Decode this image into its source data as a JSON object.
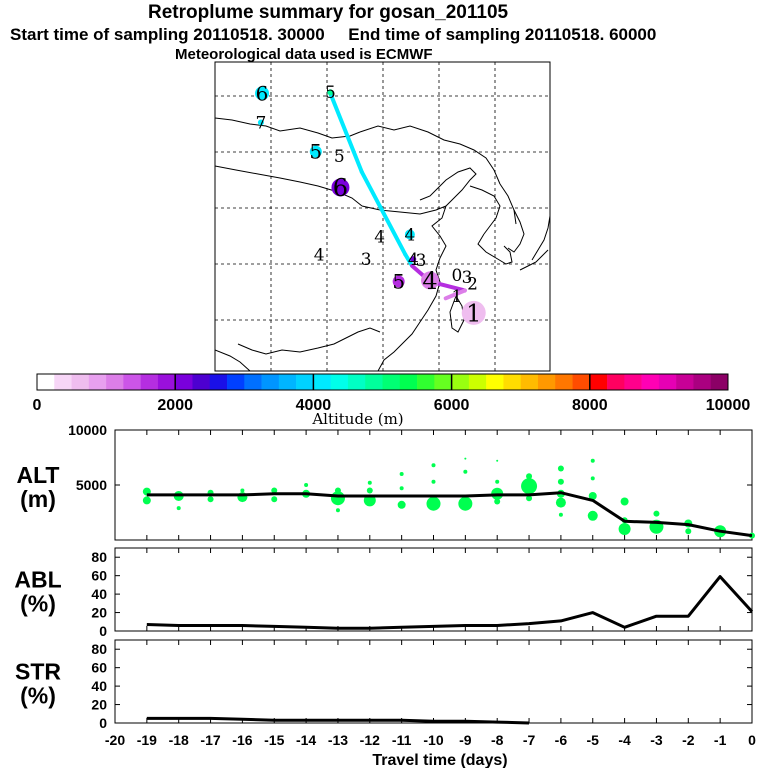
{
  "header": {
    "title": "Retroplume summary for gosan_201105",
    "start_time": "Start time of sampling 20110518. 30000",
    "end_time": "End time of sampling 20110518. 60000",
    "met_data": "Meteorological data used is ECMWF"
  },
  "colorbar": {
    "label": "Altitude (m)",
    "tick_labels": [
      "0",
      "2000",
      "4000",
      "6000",
      "8000",
      "10000"
    ],
    "range": [
      0,
      10000
    ],
    "colors": [
      "#ffffff",
      "#f7d6f7",
      "#efbdef",
      "#e8a0ef",
      "#dc7ee8",
      "#cc55e8",
      "#b52ee0",
      "#9a10dc",
      "#7a00dc",
      "#4d00d0",
      "#1a10e8",
      "#0040ff",
      "#0070ff",
      "#0095ff",
      "#00b5ff",
      "#00d2ff",
      "#00eaff",
      "#00ffea",
      "#00ffc4",
      "#00ff9c",
      "#00ff74",
      "#00ff50",
      "#30ff30",
      "#66ff20",
      "#99ff10",
      "#ccff00",
      "#ffff00",
      "#ffdd00",
      "#ffbb00",
      "#ff9900",
      "#ff7700",
      "#ff4c00",
      "#ff0000",
      "#ff0060",
      "#ff008c",
      "#ff00b4",
      "#e600b4",
      "#c80096",
      "#aa0080",
      "#8c0066"
    ]
  },
  "map": {
    "trajectory": [
      {
        "day": 7,
        "lon": 117.3,
        "lat": 55.2,
        "alt": 4000
      },
      {
        "day": 5,
        "lon": 120.1,
        "lat": 48.2,
        "alt": 4000
      },
      {
        "day": 4,
        "lon": 124.0,
        "lat": 40.8,
        "alt": 4000
      },
      {
        "day": 3,
        "lon": 124.6,
        "lat": 39.8,
        "alt": 1500
      },
      {
        "day": 2,
        "lon": 126.2,
        "lat": 38.4,
        "alt": 1500
      },
      {
        "day": 1,
        "lon": 129.3,
        "lat": 37.6,
        "alt": 1000
      },
      {
        "day": 0,
        "lon": 127.6,
        "lat": 36.9,
        "alt": 500
      }
    ],
    "markers": [
      {
        "label": "6",
        "lon": 111.2,
        "lat": 55.2,
        "alt": 4000,
        "size": 7
      },
      {
        "label": "5",
        "lon": 117.3,
        "lat": 55.3,
        "alt": 4800,
        "size": 3
      },
      {
        "label": "7",
        "lon": 111.1,
        "lat": 52.6,
        "alt": 4000,
        "size": 3
      },
      {
        "label": "5",
        "lon": 116.0,
        "lat": 50.0,
        "alt": 4000,
        "size": 6
      },
      {
        "label": "5",
        "lon": 118.1,
        "lat": 49.6,
        "alt": 4000,
        "size": 0
      },
      {
        "label": "6",
        "lon": 118.2,
        "lat": 46.8,
        "alt": 2000,
        "size": 9
      },
      {
        "label": "4",
        "lon": 121.7,
        "lat": 42.4,
        "alt": 3800,
        "size": 0
      },
      {
        "label": "4",
        "lon": 124.4,
        "lat": 42.6,
        "alt": 4000,
        "size": 5
      },
      {
        "label": "4",
        "lon": 116.3,
        "lat": 40.8,
        "alt": 4000,
        "size": 0
      },
      {
        "label": "3",
        "lon": 120.5,
        "lat": 40.4,
        "alt": 4000,
        "size": 0
      },
      {
        "label": "4",
        "lon": 124.7,
        "lat": 40.4,
        "alt": 2000,
        "size": 3
      },
      {
        "label": "3",
        "lon": 125.4,
        "lat": 40.3,
        "alt": 1800,
        "size": 0
      },
      {
        "label": "5",
        "lon": 123.4,
        "lat": 38.4,
        "alt": 1500,
        "size": 6
      },
      {
        "label": "4",
        "lon": 126.2,
        "lat": 38.5,
        "alt": 1000,
        "size": 9
      },
      {
        "label": "0",
        "lon": 128.6,
        "lat": 39.0,
        "alt": 500,
        "size": 0
      },
      {
        "label": "3",
        "lon": 129.5,
        "lat": 38.8,
        "alt": 1500,
        "size": 0
      },
      {
        "label": "2",
        "lon": 130.0,
        "lat": 38.2,
        "alt": 1500,
        "size": 0
      },
      {
        "label": "1",
        "lon": 128.6,
        "lat": 37.1,
        "alt": 500,
        "size": 0
      },
      {
        "label": "1",
        "lon": 130.1,
        "lat": 35.6,
        "alt": 500,
        "size": 12
      }
    ]
  },
  "chart_data": [
    {
      "type": "line",
      "name": "ALT",
      "ylabel": "ALT\n(m)",
      "ylabel_lines": [
        "ALT",
        "(m)"
      ],
      "ylim": [
        0,
        10000
      ],
      "ytick_labels": [
        "5000",
        "10000"
      ],
      "ytick_values": [
        5000,
        10000
      ],
      "x": [
        -19,
        -18,
        -17,
        -16,
        -15,
        -14,
        -13,
        -12,
        -11,
        -10,
        -9,
        -8,
        -7,
        -6,
        -5,
        -4,
        -3,
        -2,
        -1,
        0
      ],
      "values": [
        4100,
        4100,
        4100,
        4100,
        4200,
        4200,
        4000,
        4000,
        4000,
        4000,
        4000,
        4100,
        4100,
        4300,
        3600,
        1700,
        1600,
        1400,
        800,
        400
      ],
      "scatter": [
        {
          "x": -19,
          "y": 4400,
          "r": 4
        },
        {
          "x": -19,
          "y": 3600,
          "r": 4
        },
        {
          "x": -18,
          "y": 4000,
          "r": 5
        },
        {
          "x": -18,
          "y": 2900,
          "r": 2
        },
        {
          "x": -17,
          "y": 4300,
          "r": 3
        },
        {
          "x": -17,
          "y": 3700,
          "r": 3
        },
        {
          "x": -16,
          "y": 3900,
          "r": 5
        },
        {
          "x": -16,
          "y": 4500,
          "r": 2
        },
        {
          "x": -15,
          "y": 4500,
          "r": 3
        },
        {
          "x": -15,
          "y": 3700,
          "r": 3
        },
        {
          "x": -14,
          "y": 4200,
          "r": 4
        },
        {
          "x": -14,
          "y": 5000,
          "r": 2
        },
        {
          "x": -13,
          "y": 4500,
          "r": 3
        },
        {
          "x": -13,
          "y": 3800,
          "r": 7
        },
        {
          "x": -13,
          "y": 2700,
          "r": 2
        },
        {
          "x": -12,
          "y": 4500,
          "r": 3
        },
        {
          "x": -12,
          "y": 3600,
          "r": 6
        },
        {
          "x": -12,
          "y": 5200,
          "r": 2
        },
        {
          "x": -11,
          "y": 3200,
          "r": 4
        },
        {
          "x": -11,
          "y": 4700,
          "r": 2
        },
        {
          "x": -11,
          "y": 6000,
          "r": 2
        },
        {
          "x": -10,
          "y": 3300,
          "r": 7
        },
        {
          "x": -10,
          "y": 5300,
          "r": 2
        },
        {
          "x": -10,
          "y": 6800,
          "r": 2
        },
        {
          "x": -9,
          "y": 3300,
          "r": 7
        },
        {
          "x": -9,
          "y": 6200,
          "r": 2
        },
        {
          "x": -9,
          "y": 7400,
          "r": 1
        },
        {
          "x": -8,
          "y": 3500,
          "r": 3
        },
        {
          "x": -8,
          "y": 4200,
          "r": 6
        },
        {
          "x": -8,
          "y": 5300,
          "r": 2
        },
        {
          "x": -8,
          "y": 7200,
          "r": 1
        },
        {
          "x": -7,
          "y": 4900,
          "r": 8
        },
        {
          "x": -7,
          "y": 3800,
          "r": 3
        },
        {
          "x": -7,
          "y": 5800,
          "r": 3
        },
        {
          "x": -6,
          "y": 4200,
          "r": 4
        },
        {
          "x": -6,
          "y": 3400,
          "r": 5
        },
        {
          "x": -6,
          "y": 5300,
          "r": 3
        },
        {
          "x": -6,
          "y": 6500,
          "r": 3
        },
        {
          "x": -6,
          "y": 2300,
          "r": 2
        },
        {
          "x": -5,
          "y": 4000,
          "r": 4
        },
        {
          "x": -5,
          "y": 2200,
          "r": 5
        },
        {
          "x": -5,
          "y": 7200,
          "r": 2
        },
        {
          "x": -5,
          "y": 5600,
          "r": 2
        },
        {
          "x": -4,
          "y": 3500,
          "r": 4
        },
        {
          "x": -4,
          "y": 1000,
          "r": 6
        },
        {
          "x": -4,
          "y": 1800,
          "r": 3
        },
        {
          "x": -3,
          "y": 1200,
          "r": 7
        },
        {
          "x": -3,
          "y": 2400,
          "r": 3
        },
        {
          "x": -2,
          "y": 1500,
          "r": 4
        },
        {
          "x": -2,
          "y": 800,
          "r": 3
        },
        {
          "x": -1,
          "y": 800,
          "r": 6
        },
        {
          "x": -1,
          "y": 600,
          "r": 3
        },
        {
          "x": 0,
          "y": 400,
          "r": 3
        }
      ],
      "line_color": "#000000",
      "scatter_color": "#00ff50"
    },
    {
      "type": "line",
      "name": "ABL",
      "ylabel": "ABL\n(%)",
      "ylabel_lines": [
        "ABL",
        "(%)"
      ],
      "ylim": [
        0,
        90
      ],
      "ytick_labels": [
        "0",
        "20",
        "40",
        "60",
        "80"
      ],
      "ytick_values": [
        0,
        20,
        40,
        60,
        80
      ],
      "x": [
        -19,
        -18,
        -17,
        -16,
        -15,
        -14,
        -13,
        -12,
        -11,
        -10,
        -9,
        -8,
        -7,
        -6,
        -5,
        -4,
        -3,
        -2,
        -1,
        0
      ],
      "values": [
        7,
        6,
        6,
        6,
        5,
        4,
        3,
        3,
        4,
        5,
        6,
        6,
        8,
        11,
        20,
        4,
        16,
        16,
        59,
        21
      ],
      "line_color": "#000000"
    },
    {
      "type": "line",
      "name": "STR",
      "ylabel": "STR\n(%)",
      "ylabel_lines": [
        "STR",
        "(%)"
      ],
      "ylim": [
        0,
        90
      ],
      "ytick_labels": [
        "0",
        "20",
        "40",
        "60",
        "80"
      ],
      "ytick_values": [
        0,
        20,
        40,
        60,
        80
      ],
      "x": [
        -19,
        -18,
        -17,
        -16,
        -15,
        -14,
        -13,
        -12,
        -11,
        -10,
        -9,
        -8,
        -7
      ],
      "values": [
        5,
        5,
        5,
        4,
        3,
        3,
        3,
        3,
        3,
        2,
        2,
        1,
        0
      ],
      "line_color": "#000000"
    }
  ],
  "xaxis": {
    "xlabel": "Travel time (days)",
    "range": [
      -20,
      0
    ],
    "tick_labels": [
      "-20",
      "-19",
      "-18",
      "-17",
      "-16",
      "-15",
      "-14",
      "-13",
      "-12",
      "-11",
      "-10",
      "-9",
      "-8",
      "-7",
      "-6",
      "-5",
      "-4",
      "-3",
      "-2",
      "-1",
      "0"
    ]
  }
}
